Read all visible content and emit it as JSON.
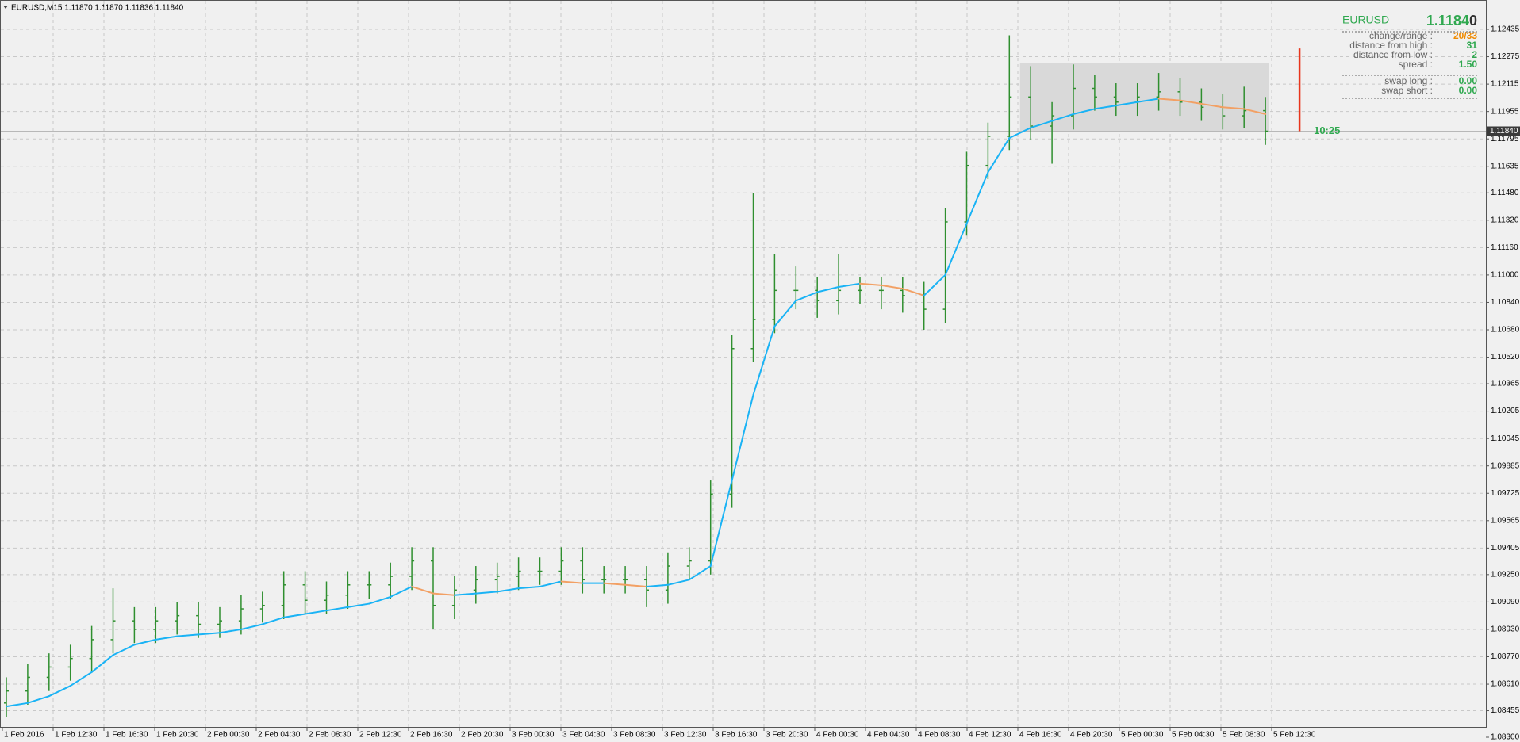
{
  "chart_data": {
    "type": "ohlc",
    "title": "EURUSD,M15  1.11870 1.11870 1.11836 1.11840",
    "bar_color": "#2f8f2f",
    "open": [
      1.085,
      1.0857,
      1.0865,
      1.0871,
      1.0876,
      1.0887,
      1.0898,
      1.0893,
      1.0898,
      1.0901,
      1.0896,
      1.0898,
      1.0905,
      1.0907,
      1.0919,
      1.091,
      1.0913,
      1.0919,
      1.0919,
      1.0924,
      1.0933,
      1.0907,
      1.0916,
      1.0922,
      1.0924,
      1.0927,
      1.0927,
      1.0933,
      1.0922,
      1.0922,
      1.0922,
      1.0916,
      1.093,
      1.0933,
      1.0972,
      1.1057,
      1.1074,
      1.1091,
      1.1091,
      1.1085,
      1.1091,
      1.1091,
      1.1091,
      1.1088,
      1.108,
      1.1131,
      1.1164,
      1.1181,
      1.1204,
      1.1187,
      1.1193,
      1.1209,
      1.1204,
      1.1201,
      1.1204,
      1.1207,
      1.1201,
      1.1198,
      1.1193,
      1.1196
    ],
    "high": [
      1.0865,
      1.0873,
      1.0879,
      1.0884,
      1.0895,
      1.0917,
      1.0906,
      1.0906,
      1.0909,
      1.0909,
      1.0906,
      1.0913,
      1.0915,
      1.0927,
      1.0927,
      1.0921,
      1.0927,
      1.0927,
      1.0932,
      1.0941,
      1.0941,
      1.0924,
      1.093,
      1.0932,
      1.0935,
      1.0935,
      1.0941,
      1.0941,
      1.093,
      1.093,
      1.093,
      1.0938,
      1.0941,
      1.098,
      1.1065,
      1.1148,
      1.1112,
      1.1105,
      1.1099,
      1.1112,
      1.1099,
      1.1099,
      1.1099,
      1.1096,
      1.1139,
      1.1172,
      1.1189,
      1.124,
      1.1222,
      1.1201,
      1.1223,
      1.1217,
      1.1212,
      1.1212,
      1.1218,
      1.1215,
      1.1209,
      1.1206,
      1.121,
      1.1204
    ],
    "low": [
      1.0842,
      1.0849,
      1.0857,
      1.0863,
      1.0868,
      1.0879,
      1.0885,
      1.0885,
      1.089,
      1.0888,
      1.0888,
      1.089,
      1.0897,
      1.0899,
      1.0902,
      1.0902,
      1.0905,
      1.0911,
      1.0911,
      1.0916,
      1.0893,
      1.0899,
      1.0908,
      1.0914,
      1.0916,
      1.0919,
      1.0919,
      1.0914,
      1.0914,
      1.0914,
      1.0906,
      1.0908,
      1.0922,
      1.0925,
      1.0964,
      1.1049,
      1.1066,
      1.108,
      1.1075,
      1.1077,
      1.1083,
      1.108,
      1.1078,
      1.1068,
      1.1072,
      1.1123,
      1.1156,
      1.1173,
      1.1179,
      1.1165,
      1.1185,
      1.1196,
      1.1193,
      1.1193,
      1.1196,
      1.1193,
      1.119,
      1.1185,
      1.1186,
      1.1176
    ],
    "close": [
      1.0857,
      1.0865,
      1.0871,
      1.0876,
      1.0887,
      1.0898,
      1.0893,
      1.0898,
      1.0901,
      1.0896,
      1.0898,
      1.0905,
      1.0907,
      1.0919,
      1.091,
      1.0913,
      1.0919,
      1.0919,
      1.0924,
      1.0933,
      1.0907,
      1.0916,
      1.0922,
      1.0924,
      1.0927,
      1.0927,
      1.0933,
      1.0922,
      1.0922,
      1.0922,
      1.0916,
      1.093,
      1.0933,
      1.0972,
      1.1057,
      1.1074,
      1.1091,
      1.1091,
      1.1085,
      1.1091,
      1.1091,
      1.1091,
      1.1088,
      1.108,
      1.1131,
      1.1164,
      1.1181,
      1.1204,
      1.1187,
      1.1193,
      1.1209,
      1.1204,
      1.1201,
      1.1204,
      1.1207,
      1.1201,
      1.1198,
      1.1193,
      1.1196,
      1.1184
    ],
    "ma": {
      "up_color": "#1ab3f5",
      "down_color": "#f2a064",
      "values": [
        1.0848,
        1.085,
        1.0854,
        1.086,
        1.0868,
        1.0878,
        1.0884,
        1.0887,
        1.0889,
        1.089,
        1.0891,
        1.0893,
        1.0896,
        1.09,
        1.0902,
        1.0904,
        1.0906,
        1.0908,
        1.0912,
        1.0918,
        1.0914,
        1.0913,
        1.0914,
        1.0915,
        1.0917,
        1.0918,
        1.0921,
        1.092,
        1.092,
        1.0919,
        1.0918,
        1.0919,
        1.0922,
        1.093,
        1.098,
        1.103,
        1.107,
        1.1085,
        1.109,
        1.1093,
        1.1095,
        1.1094,
        1.1092,
        1.1088,
        1.11,
        1.113,
        1.116,
        1.118,
        1.1186,
        1.119,
        1.1194,
        1.1197,
        1.1199,
        1.1201,
        1.1203,
        1.1202,
        1.12,
        1.1198,
        1.1197,
        1.1194
      ]
    },
    "xlabels": [
      "1 Feb 2016",
      "1 Feb 12:30",
      "1 Feb 16:30",
      "1 Feb 20:30",
      "2 Feb 00:30",
      "2 Feb 04:30",
      "2 Feb 08:30",
      "2 Feb 12:30",
      "2 Feb 16:30",
      "2 Feb 20:30",
      "3 Feb 00:30",
      "3 Feb 04:30",
      "3 Feb 08:30",
      "3 Feb 12:30",
      "3 Feb 16:30",
      "3 Feb 20:30",
      "4 Feb 00:30",
      "4 Feb 04:30",
      "4 Feb 08:30",
      "4 Feb 12:30",
      "4 Feb 16:30",
      "4 Feb 20:30",
      "5 Feb 00:30",
      "5 Feb 04:30",
      "5 Feb 08:30",
      "5 Feb 12:30"
    ],
    "ylim": [
      1.083,
      1.12435
    ],
    "yticks": [
      1.12435,
      1.12275,
      1.12115,
      1.11955,
      1.11795,
      1.11635,
      {
        "value": 1.1148,
        "label": "1.11480"
      },
      {
        "value": 1.1132,
        "label": "1.11320"
      },
      {
        "value": 1.1116,
        "label": "1.11160"
      },
      {
        "value": 1.11,
        "label": "1.11000"
      },
      {
        "value": 1.1084,
        "label": "1.10840"
      },
      {
        "value": 1.1068,
        "label": "1.10680"
      },
      {
        "value": 1.1052,
        "label": "1.10520"
      },
      1.10365,
      1.10205,
      1.10045,
      1.09885,
      1.09725,
      1.09565,
      1.09405,
      {
        "value": 1.0925,
        "label": "1.09250"
      },
      {
        "value": 1.0909,
        "label": "1.09090"
      },
      {
        "value": 1.0893,
        "label": "1.08930"
      },
      {
        "value": 1.0877,
        "label": "1.08770"
      },
      {
        "value": 1.0861,
        "label": "1.08610"
      },
      1.08455,
      {
        "value": 1.083,
        "label": "1.08300"
      }
    ],
    "grid": true,
    "current_price": {
      "value": 1.1184,
      "label": "1.11840"
    },
    "timer": "10:25",
    "range": {
      "high": 1.1224,
      "low": 1.1184,
      "box_color": "#d9d9d9",
      "bar_color": "#e8351c"
    },
    "panel": {
      "symbol": "EURUSD",
      "price_main": "1.1184",
      "price_last": "0",
      "rows": [
        {
          "label": "change/range :",
          "value": "20/33",
          "color": "#f08a00"
        },
        {
          "label": "distance from high :",
          "value": "31",
          "color": "#2fa84f"
        },
        {
          "label": "distance from low :",
          "value": "2",
          "color": "#2fa84f"
        },
        {
          "label": "spread :",
          "value": "1.50",
          "color": "#2fa84f"
        },
        {
          "label": "swap long :",
          "value": "0.00",
          "color": "#2fa84f"
        },
        {
          "label": "swap short :",
          "value": "0.00",
          "color": "#2fa84f"
        }
      ]
    }
  }
}
